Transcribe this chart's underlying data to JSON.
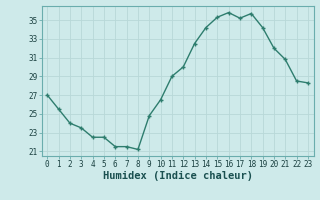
{
  "x": [
    0,
    1,
    2,
    3,
    4,
    5,
    6,
    7,
    8,
    9,
    10,
    11,
    12,
    13,
    14,
    15,
    16,
    17,
    18,
    19,
    20,
    21,
    22,
    23
  ],
  "y": [
    27,
    25.5,
    24,
    23.5,
    22.5,
    22.5,
    21.5,
    21.5,
    21.2,
    24.8,
    26.5,
    29,
    30,
    32.5,
    34.2,
    35.3,
    35.8,
    35.2,
    35.7,
    34.2,
    32,
    30.8,
    28.5,
    28.3
  ],
  "line_color": "#2e7d6e",
  "marker": "+",
  "marker_size": 3.5,
  "linewidth": 1.0,
  "bg_color": "#ceeaea",
  "grid_color": "#b8d8d8",
  "xlabel": "Humidex (Indice chaleur)",
  "xlim": [
    -0.5,
    23.5
  ],
  "ylim": [
    20.5,
    36.5
  ],
  "yticks": [
    21,
    23,
    25,
    27,
    29,
    31,
    33,
    35
  ],
  "xticks": [
    0,
    1,
    2,
    3,
    4,
    5,
    6,
    7,
    8,
    9,
    10,
    11,
    12,
    13,
    14,
    15,
    16,
    17,
    18,
    19,
    20,
    21,
    22,
    23
  ],
  "tick_label_size": 5.5,
  "xlabel_size": 7.5,
  "spine_color": "#6aadad"
}
